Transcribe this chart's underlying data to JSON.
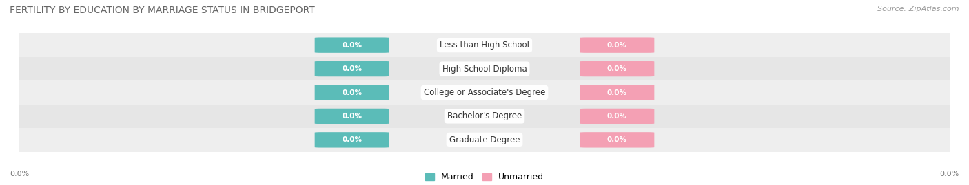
{
  "title": "FERTILITY BY EDUCATION BY MARRIAGE STATUS IN BRIDGEPORT",
  "source": "Source: ZipAtlas.com",
  "categories": [
    "Less than High School",
    "High School Diploma",
    "College or Associate's Degree",
    "Bachelor's Degree",
    "Graduate Degree"
  ],
  "married_values": [
    0.0,
    0.0,
    0.0,
    0.0,
    0.0
  ],
  "unmarried_values": [
    0.0,
    0.0,
    0.0,
    0.0,
    0.0
  ],
  "married_color": "#5bbcb8",
  "unmarried_color": "#f4a0b4",
  "row_bg_colors": [
    "#eeeeee",
    "#e6e6e6"
  ],
  "title_fontsize": 10,
  "source_fontsize": 8,
  "bar_height": 0.62,
  "figsize": [
    14.06,
    2.69
  ],
  "dpi": 100,
  "legend_labels": [
    "Married",
    "Unmarried"
  ],
  "axis_label": "0.0%",
  "label_value": "0.0%"
}
